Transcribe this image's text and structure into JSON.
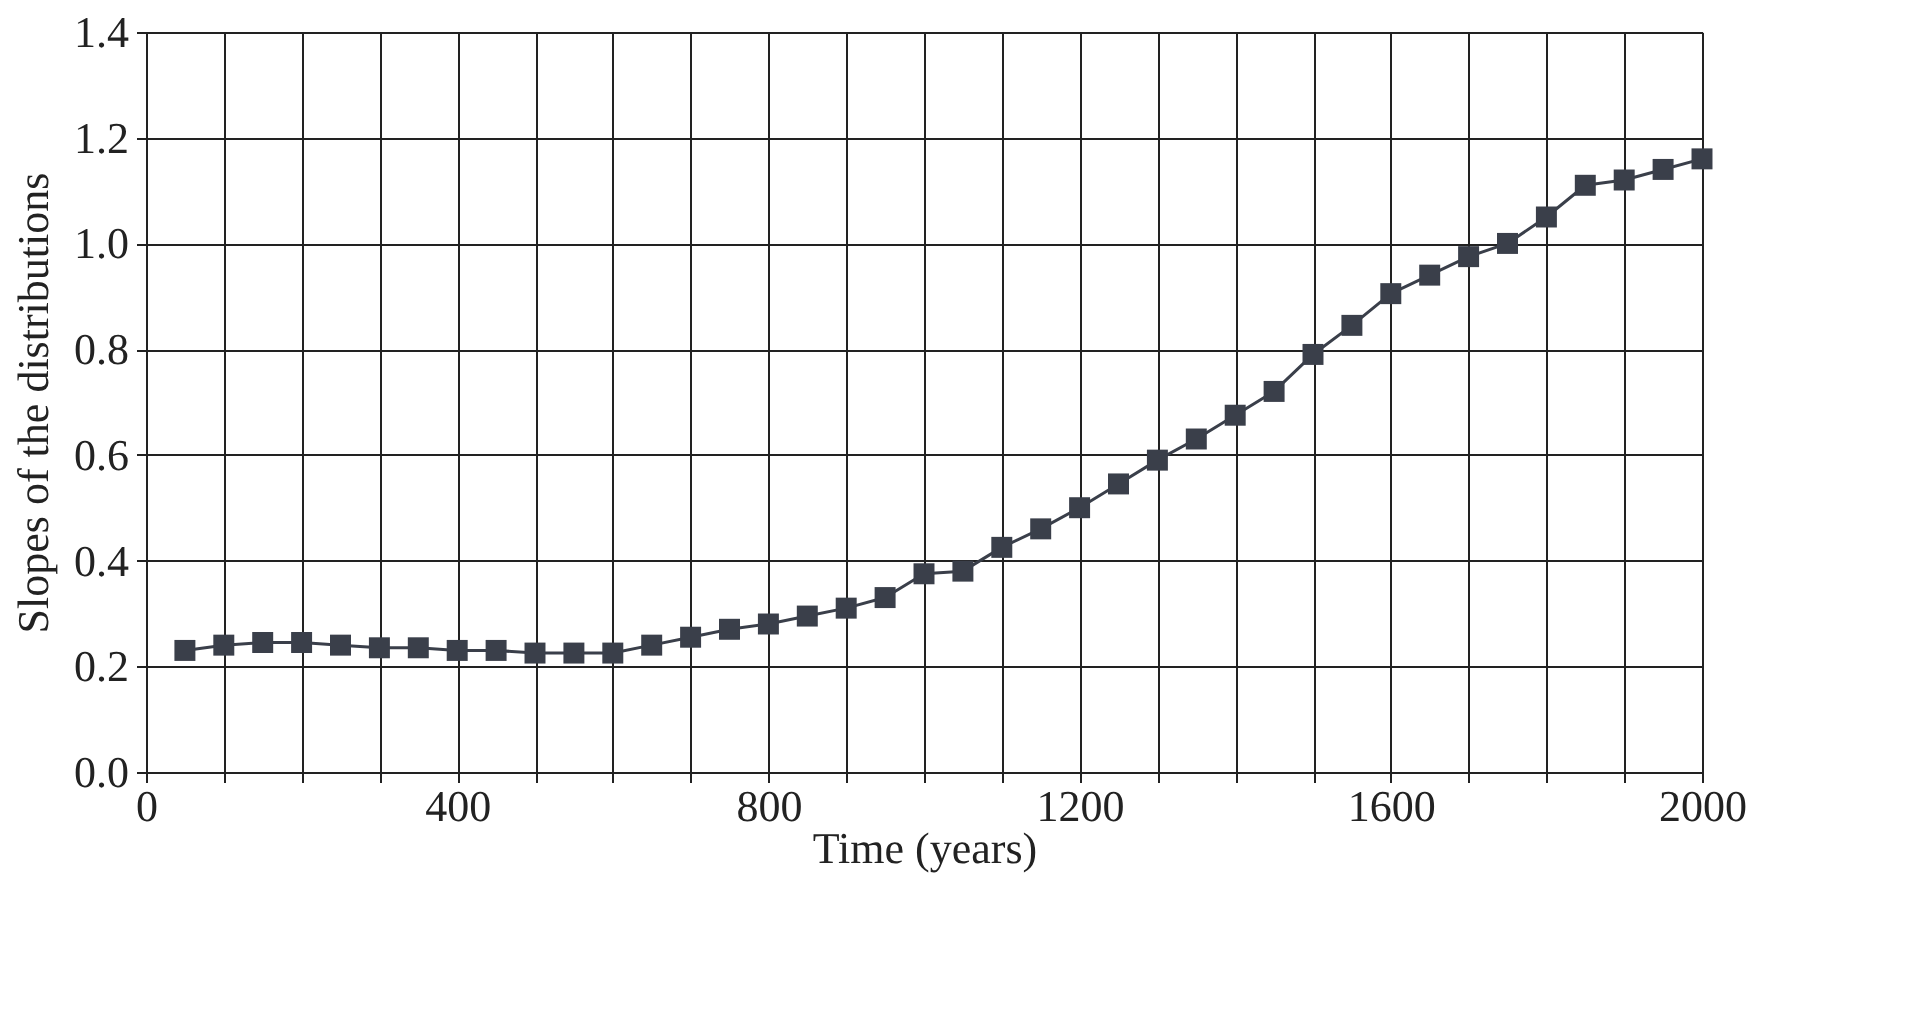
{
  "chart_data": {
    "type": "line",
    "xlabel": "Time (years)",
    "ylabel": "Slopes of the distributions",
    "x": [
      50,
      100,
      150,
      200,
      250,
      300,
      350,
      400,
      450,
      500,
      550,
      600,
      650,
      700,
      750,
      800,
      850,
      900,
      950,
      1000,
      1050,
      1100,
      1150,
      1200,
      1250,
      1300,
      1350,
      1400,
      1450,
      1500,
      1550,
      1600,
      1650,
      1700,
      1750,
      1800,
      1850,
      1900,
      1950,
      2000
    ],
    "series": [
      {
        "color": "#3a3f4a",
        "values": [
          0.23,
          0.24,
          0.245,
          0.245,
          0.24,
          0.235,
          0.235,
          0.23,
          0.23,
          0.225,
          0.225,
          0.225,
          0.24,
          0.255,
          0.27,
          0.28,
          0.295,
          0.31,
          0.33,
          0.375,
          0.38,
          0.425,
          0.46,
          0.5,
          0.545,
          0.59,
          0.63,
          0.675,
          0.72,
          0.79,
          0.845,
          0.905,
          0.94,
          0.975,
          1.0,
          1.05,
          1.11,
          1.12,
          1.14,
          1.16
        ]
      }
    ],
    "xlim": [
      0,
      2000
    ],
    "xticks": [
      0,
      {
        "value": 100,
        "label": null
      },
      {
        "value": 200,
        "label": null
      },
      {
        "value": 300,
        "label": null
      },
      400,
      {
        "value": 500,
        "label": null
      },
      {
        "value": 600,
        "label": null
      },
      {
        "value": 700,
        "label": null
      },
      800,
      {
        "value": 900,
        "label": null
      },
      {
        "value": 1000,
        "label": null
      },
      {
        "value": 1100,
        "label": null
      },
      1200,
      {
        "value": 1300,
        "label": null
      },
      {
        "value": 1400,
        "label": null
      },
      {
        "value": 1500,
        "label": null
      },
      1600,
      {
        "value": 1700,
        "label": null
      },
      {
        "value": 1800,
        "label": null
      },
      {
        "value": 1900,
        "label": null
      },
      2000
    ],
    "ylim": [
      0,
      1.4
    ],
    "yticks": [
      {
        "value": 0,
        "label": "0.0"
      },
      {
        "value": 0.2,
        "label": "0.2"
      },
      {
        "value": 0.4,
        "label": "0.4"
      },
      {
        "value": 0.6,
        "label": "0.6"
      },
      {
        "value": 0.8,
        "label": "0.8"
      },
      {
        "value": 1.0,
        "label": "1.0"
      },
      {
        "value": 1.2,
        "label": "1.2"
      },
      {
        "value": 1.4,
        "label": "1.4"
      }
    ],
    "grid": true,
    "marker": "square",
    "line_style": "solid"
  }
}
